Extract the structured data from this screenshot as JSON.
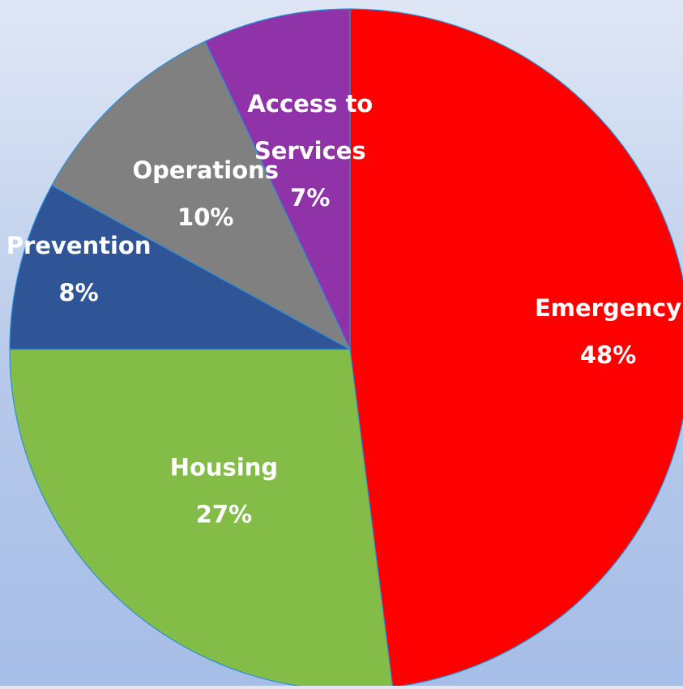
{
  "chart_data": {
    "type": "pie",
    "title": "",
    "slices": [
      {
        "label": [
          "Emergency"
        ],
        "value": 48,
        "percent_label": "48%",
        "color": "#ff0000"
      },
      {
        "label": [
          "Housing"
        ],
        "value": 27,
        "percent_label": "27%",
        "color": "#84bc48"
      },
      {
        "label": [
          "Prevention"
        ],
        "value": 8,
        "percent_label": "8%",
        "color": "#2f5597"
      },
      {
        "label": [
          "Operations"
        ],
        "value": 10,
        "percent_label": "10%",
        "color": "#808080"
      },
      {
        "label": [
          "Access to",
          "Services"
        ],
        "value": 7,
        "percent_label": "7%",
        "color": "#9033a8"
      }
    ],
    "start_angle": "top (12 o'clock)",
    "direction": "clockwise",
    "legend": "none"
  }
}
